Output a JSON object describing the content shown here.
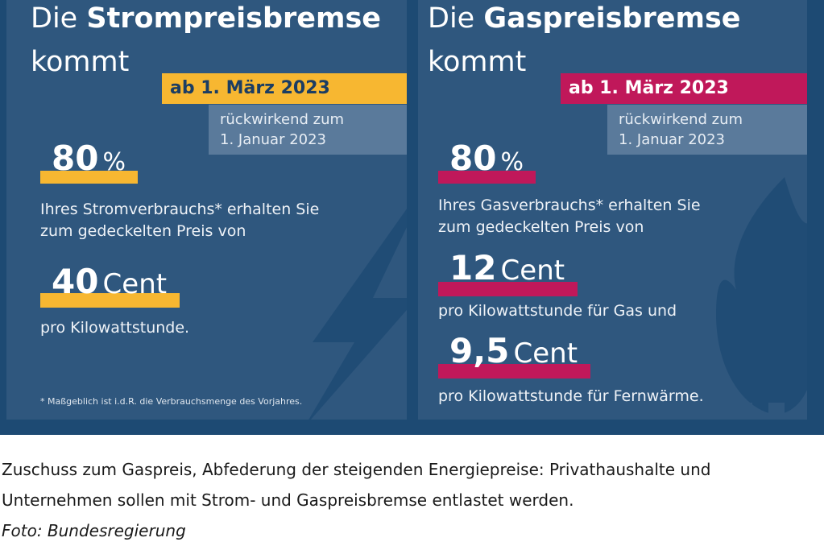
{
  "strom": {
    "title_light": "Die",
    "title_bold": "Strompreisbremse",
    "title_line2": "kommt",
    "date": "ab 1. März 2023",
    "retro_line1": "rückwirkend zum",
    "retro_line2": "1. Januar 2023",
    "percent_value": "80",
    "percent_sign": "%",
    "desc_line1": "Ihres Stromverbrauchs* erhalten Sie",
    "desc_line2": "zum gedeckelten Preis von",
    "price_value": "40",
    "price_unit": "Cent",
    "price_desc": "pro Kilowattstunde.",
    "footnote": "* Maßgeblich ist i.d.R. die Verbrauchsmenge des Vorjahres."
  },
  "gas": {
    "title_light": "Die",
    "title_bold": "Gaspreisbremse",
    "title_line2": "kommt",
    "date": "ab 1. März 2023",
    "retro_line1": "rückwirkend zum",
    "retro_line2": "1. Januar 2023",
    "percent_value": "80",
    "percent_sign": "%",
    "desc_line1": "Ihres Gasverbrauchs* erhalten Sie",
    "desc_line2": "zum gedeckelten Preis von",
    "price1_value": "12",
    "price1_unit": "Cent",
    "price1_desc": "pro Kilowattstunde für Gas und",
    "price2_value": "9,5",
    "price2_unit": "Cent",
    "price2_desc": "pro Kilowattstunde für Fernwärme."
  },
  "caption": {
    "line1": "Zuschuss zum Gaspreis, Abfederung der steigenden Energiepreise: Privathaushalte und",
    "line2": "Unternehmen sollen mit Strom- und Gaspreisbremse entlastet werden.",
    "credit": "Foto: Bundesregierung"
  },
  "colors": {
    "background": "#1d4a73",
    "panel": "#2f577e",
    "strom_accent": "#f7b731",
    "gas_accent": "#c0185a",
    "retro_box": "#5a7a9b"
  },
  "icons": {
    "strom_watermark": "lightning-bolt-icon",
    "gas_watermark": "flame-icon"
  }
}
